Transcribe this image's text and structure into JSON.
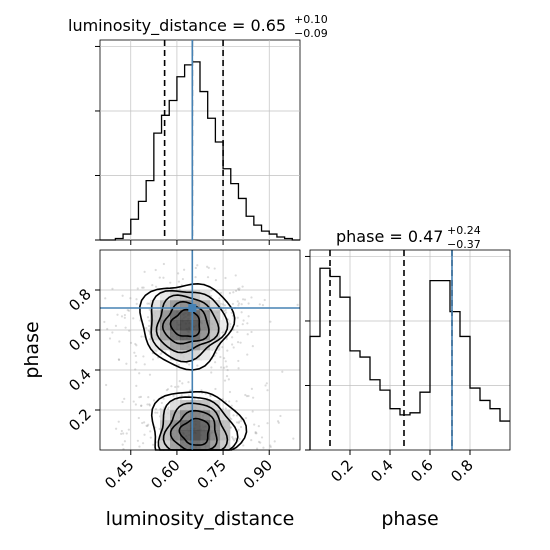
{
  "chart_data": [
    {
      "type": "histogram",
      "panel": "luminosity_distance",
      "title_main": "luminosity_distance = 0.65",
      "title_sup": "+0.10",
      "title_sub": "−0.09",
      "xlim": [
        0.35,
        1.0
      ],
      "bins": [
        0.35,
        0.375,
        0.4,
        0.425,
        0.45,
        0.475,
        0.5,
        0.525,
        0.55,
        0.575,
        0.6,
        0.625,
        0.65,
        0.675,
        0.7,
        0.725,
        0.75,
        0.775,
        0.8,
        0.825,
        0.85,
        0.875,
        0.9,
        0.925,
        0.95,
        0.975,
        1.0
      ],
      "values": [
        0,
        0,
        1,
        4,
        14,
        26,
        40,
        72,
        84,
        94,
        110,
        118,
        120,
        100,
        82,
        66,
        48,
        38,
        28,
        16,
        10,
        6,
        4,
        2,
        1,
        0
      ],
      "quantiles": [
        0.56,
        0.65,
        0.75
      ],
      "truth": 0.65
    },
    {
      "type": "histogram",
      "panel": "phase",
      "title_main": "phase = 0.47",
      "title_sup": "+0.24",
      "title_sub": "−0.37",
      "xlim": [
        0.0,
        1.0
      ],
      "xticks": [
        0.2,
        0.4,
        0.6,
        0.8
      ],
      "xtick_labels": [
        "0.2",
        "0.4",
        "0.6",
        "0.8"
      ],
      "xlabel": "phase",
      "bins": [
        0.0,
        0.05,
        0.1,
        0.15,
        0.2,
        0.25,
        0.3,
        0.35,
        0.4,
        0.45,
        0.5,
        0.55,
        0.6,
        0.65,
        0.7,
        0.75,
        0.8,
        0.85,
        0.9,
        0.95,
        1.0
      ],
      "values": [
        55,
        88,
        84,
        74,
        48,
        45,
        34,
        29,
        20,
        17,
        18,
        28,
        82,
        82,
        67,
        55,
        30,
        24,
        20,
        14
      ],
      "quantiles": [
        0.1,
        0.47,
        0.71
      ],
      "truth": 0.71
    },
    {
      "type": "scatter",
      "panel": "luminosity_distance-phase",
      "xlim": [
        0.35,
        1.0
      ],
      "ylim": [
        0.0,
        1.0
      ],
      "xticks": [
        0.45,
        0.6,
        0.75,
        0.9
      ],
      "xtick_labels": [
        "0.45",
        "0.60",
        "0.75",
        "0.90"
      ],
      "yticks": [
        0.2,
        0.4,
        0.6,
        0.8
      ],
      "ytick_labels": [
        "0.2",
        "0.4",
        "0.6",
        "0.8"
      ],
      "xlabel": "luminosity_distance",
      "ylabel": "phase",
      "truth": [
        0.65,
        0.71
      ],
      "modes": [
        {
          "x": 0.63,
          "y": 0.63,
          "sx": 0.085,
          "sy": 0.12
        },
        {
          "x": 0.66,
          "y": 0.09,
          "sx": 0.085,
          "sy": 0.12
        }
      ]
    }
  ],
  "colors": {
    "hist": "#000000",
    "truth": "#4682b4",
    "grid": "#c0c0c0"
  }
}
